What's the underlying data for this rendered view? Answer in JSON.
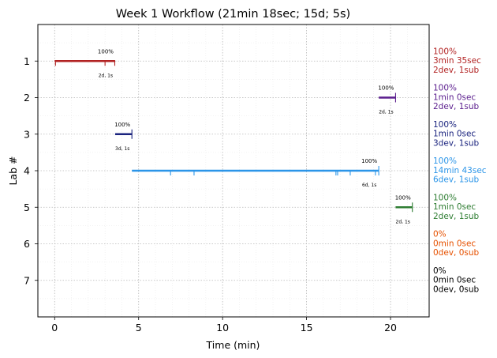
{
  "chart_data": {
    "type": "gantt",
    "title": "Week 1 Workflow (21min 18sec; 15d; 5s)",
    "xlabel": "Time (min)",
    "ylabel": "Lab #",
    "xlim": [
      -1.0,
      22.3
    ],
    "ylim": [
      0.0,
      8.0
    ],
    "y_inverted": true,
    "grid": "on (dotted major, faint minor)",
    "xticks": [
      0,
      5,
      10,
      15,
      20
    ],
    "yticks": [
      1,
      2,
      3,
      4,
      5,
      6,
      7
    ],
    "labs": [
      {
        "lab": 1,
        "color": "#b22222",
        "start": 0.0,
        "end": 3.6,
        "events": [
          0.05,
          3.0,
          3.58
        ],
        "pct_label": "100%",
        "count_label": "2d, 1s",
        "summary": [
          "100%",
          "3min 35sec",
          "2dev, 1sub"
        ]
      },
      {
        "lab": 2,
        "color": "#5b1e8e",
        "start": 19.3,
        "end": 20.3,
        "events": [
          20.3
        ],
        "pct_label": "100%",
        "count_label": "2d, 1s",
        "summary": [
          "100%",
          "1min 0sec",
          "2dev, 1sub"
        ]
      },
      {
        "lab": 3,
        "color": "#1a237e",
        "start": 3.6,
        "end": 4.6,
        "events": [
          4.6
        ],
        "pct_label": "100%",
        "count_label": "3d, 1s",
        "summary": [
          "100%",
          "1min 0sec",
          "3dev, 1sub"
        ]
      },
      {
        "lab": 4,
        "color": "#2b95e8",
        "start": 4.6,
        "end": 19.3,
        "events": [
          6.9,
          8.3,
          16.75,
          16.85,
          17.6,
          19.1,
          19.3
        ],
        "pct_label": "100%",
        "count_label": "6d, 1s",
        "summary": [
          "100%",
          "14min 43sec",
          "6dev, 1sub"
        ]
      },
      {
        "lab": 5,
        "color": "#2e7d32",
        "start": 20.3,
        "end": 21.3,
        "events": [
          21.3
        ],
        "pct_label": "100%",
        "count_label": "2d, 1s",
        "summary": [
          "100%",
          "1min 0sec",
          "2dev, 1sub"
        ]
      },
      {
        "lab": 6,
        "color": "#e65100",
        "start": null,
        "end": null,
        "events": [],
        "pct_label": "",
        "count_label": "",
        "summary": [
          "0%",
          "0min 0sec",
          "0dev, 0sub"
        ]
      },
      {
        "lab": 7,
        "color": "#000000",
        "start": null,
        "end": null,
        "events": [],
        "pct_label": "",
        "count_label": "",
        "summary": [
          "0%",
          "0min 0sec",
          "0dev, 0sub"
        ]
      }
    ]
  }
}
